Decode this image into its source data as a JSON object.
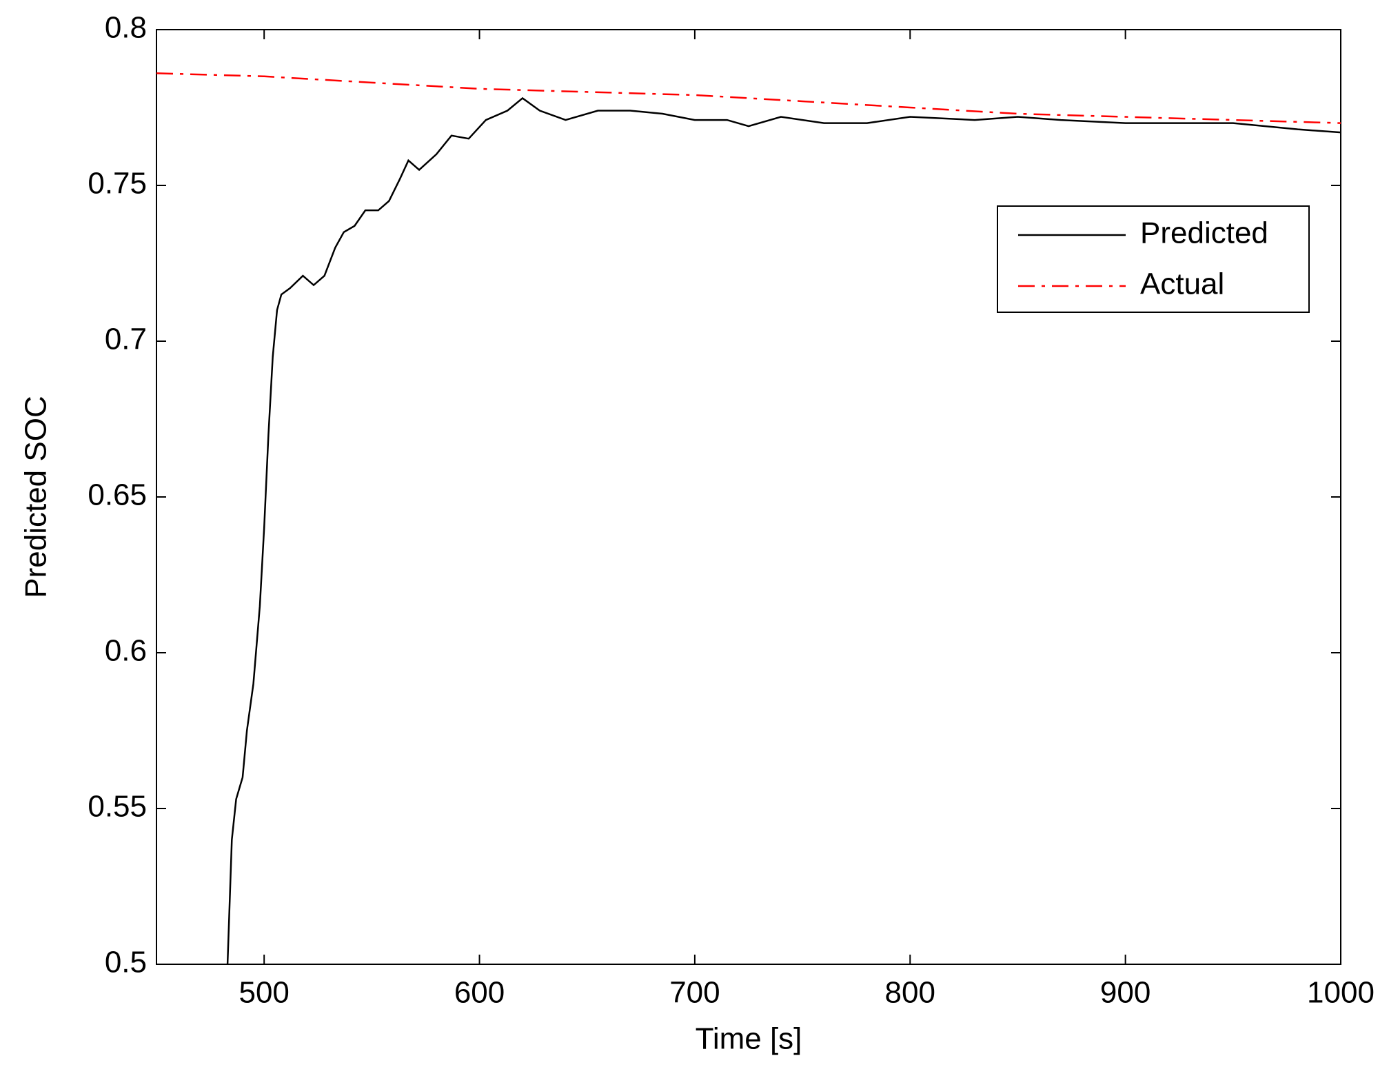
{
  "chart_data": {
    "type": "line",
    "xlabel": "Time [s]",
    "ylabel": "Predicted SOC",
    "xlim": [
      450,
      1000
    ],
    "xticks": [
      500,
      600,
      700,
      800,
      900,
      1000
    ],
    "ylim": [
      0.5,
      0.8
    ],
    "yticks": [
      0.5,
      0.55,
      0.6,
      0.65,
      0.7,
      0.75,
      0.8
    ],
    "legend": "upper right",
    "series": [
      {
        "name": "Predicted",
        "color": "#000000",
        "dash": "solid",
        "x": [
          483,
          485,
          487,
          490,
          492,
          495,
          498,
          500,
          502,
          504,
          506,
          508,
          512,
          518,
          523,
          528,
          533,
          537,
          542,
          547,
          553,
          558,
          563,
          567,
          572,
          580,
          587,
          595,
          603,
          613,
          620,
          628,
          640,
          655,
          670,
          685,
          700,
          715,
          725,
          740,
          760,
          780,
          800,
          830,
          850,
          870,
          900,
          950,
          980,
          1000
        ],
        "values": [
          0.5,
          0.54,
          0.553,
          0.56,
          0.575,
          0.59,
          0.615,
          0.64,
          0.67,
          0.695,
          0.71,
          0.715,
          0.717,
          0.721,
          0.718,
          0.721,
          0.73,
          0.735,
          0.737,
          0.742,
          0.742,
          0.745,
          0.752,
          0.758,
          0.755,
          0.76,
          0.766,
          0.765,
          0.771,
          0.774,
          0.778,
          0.774,
          0.771,
          0.774,
          0.774,
          0.773,
          0.771,
          0.771,
          0.769,
          0.772,
          0.77,
          0.77,
          0.772,
          0.771,
          0.772,
          0.771,
          0.77,
          0.77,
          0.768,
          0.767
        ]
      },
      {
        "name": "Actual",
        "color": "#ff0000",
        "dash": "dashdot",
        "x": [
          450,
          500,
          550,
          600,
          650,
          700,
          750,
          800,
          850,
          900,
          950,
          1000
        ],
        "values": [
          0.786,
          0.785,
          0.783,
          0.781,
          0.78,
          0.779,
          0.777,
          0.775,
          0.773,
          0.772,
          0.771,
          0.77
        ]
      }
    ]
  }
}
